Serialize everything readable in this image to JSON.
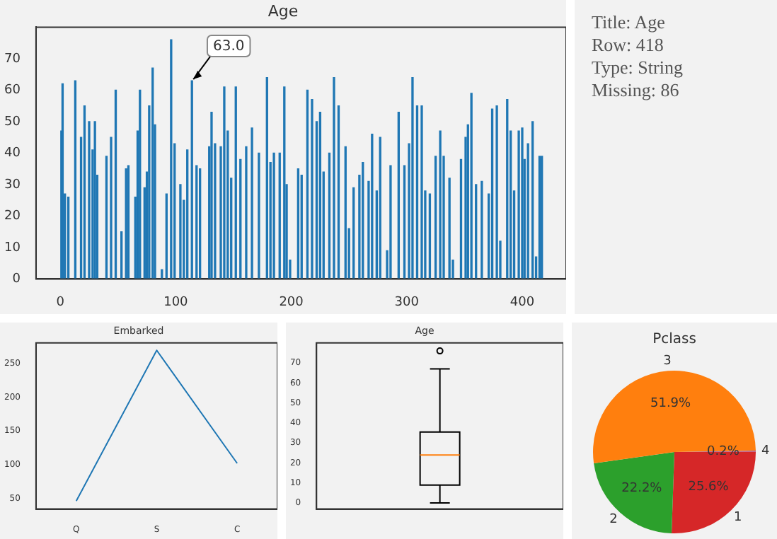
{
  "chart_data": [
    {
      "type": "bar",
      "title": "Age",
      "color": "#1f77b4",
      "xlim": [
        -21,
        438
      ],
      "ylim": [
        0,
        80
      ],
      "xticks": [
        0,
        100,
        200,
        300,
        400
      ],
      "yticks": [
        0,
        10,
        20,
        30,
        40,
        50,
        60,
        70
      ],
      "grid": false,
      "x": [
        1,
        2,
        4,
        7,
        13,
        18,
        21,
        25,
        28,
        30,
        32,
        40,
        44,
        48,
        53,
        57,
        59,
        65,
        67,
        69,
        73,
        75,
        77,
        80,
        82,
        88,
        92,
        96,
        99,
        104,
        107,
        110,
        114,
        118,
        121,
        129,
        131,
        134,
        139,
        142,
        145,
        148,
        152,
        156,
        161,
        166,
        172,
        179,
        182,
        185,
        190,
        194,
        196,
        199,
        206,
        209,
        214,
        218,
        222,
        225,
        228,
        233,
        237,
        241,
        247,
        250,
        254,
        259,
        262,
        267,
        270,
        274,
        277,
        283,
        286,
        293,
        298,
        302,
        305,
        309,
        313,
        316,
        320,
        325,
        329,
        332,
        337,
        340,
        347,
        351,
        353,
        356,
        360,
        365,
        371,
        374,
        378,
        381,
        387,
        390,
        393,
        397,
        400,
        402,
        405,
        409,
        412,
        415,
        417
      ],
      "values": [
        47,
        62,
        27,
        26,
        63,
        45,
        55,
        50,
        41,
        50,
        33,
        39,
        45,
        60,
        15,
        35,
        36,
        26,
        47,
        60,
        29,
        34,
        55,
        67,
        49,
        3,
        27,
        76,
        43,
        30,
        25,
        41,
        63,
        36,
        35,
        42,
        53,
        43,
        42,
        61,
        47,
        32,
        61,
        38,
        42,
        48,
        40,
        64,
        37,
        40,
        40,
        61,
        30,
        6,
        35,
        33,
        60,
        57,
        50,
        53,
        34,
        40,
        64,
        55,
        42,
        16,
        29,
        33,
        37,
        31,
        46,
        28,
        45,
        9,
        36,
        53,
        36,
        43,
        64,
        55,
        55,
        28,
        27,
        39,
        47,
        39,
        32,
        6,
        38,
        45,
        49,
        59,
        30,
        31,
        27,
        54,
        55,
        12,
        57,
        47,
        28,
        47,
        48,
        38,
        43,
        50,
        7,
        39,
        39
      ],
      "annotations": [
        {
          "text": "63.0",
          "x": 114,
          "y": 63
        }
      ]
    },
    {
      "type": "other",
      "annotations": [
        "Title: Age",
        "Row: 418",
        "Type: String",
        "Missing: 86"
      ]
    },
    {
      "type": "line",
      "title": "Embarked",
      "categories": [
        "Q",
        "S",
        "C"
      ],
      "values": [
        46,
        270,
        102
      ],
      "color": "#1f77b4",
      "ylim": [
        34,
        281
      ],
      "yticks": [
        50,
        100,
        150,
        200,
        250
      ],
      "grid": false
    },
    {
      "type": "box",
      "title": "Age",
      "categories": [
        null
      ],
      "boxes": [
        {
          "low": 0,
          "q1": 9,
          "median": 24,
          "q3": 35.5,
          "high": 67,
          "outliers": [
            76
          ]
        }
      ],
      "ylim": [
        -3,
        80
      ],
      "yticks": [
        0,
        10,
        20,
        30,
        40,
        50,
        60,
        70
      ],
      "grid": false
    },
    {
      "type": "pie",
      "title": "Pclass",
      "categories": [
        "4",
        "1",
        "2",
        "3"
      ],
      "values": [
        0.2,
        25.6,
        22.2,
        51.9
      ],
      "colors": [
        "#9467bd",
        "#d62728",
        "#2ca02c",
        "#ff7f0e"
      ],
      "value_labels": [
        "0.2%",
        "25.6%",
        "22.2%",
        "51.9%"
      ]
    }
  ]
}
